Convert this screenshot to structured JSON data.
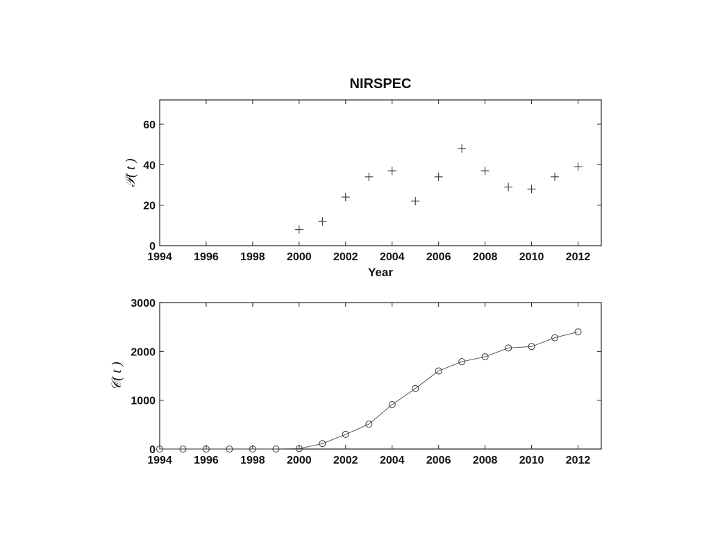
{
  "chart_data": [
    {
      "type": "scatter",
      "title": "NIRSPEC",
      "xlabel": "Year",
      "ylabel": "𝒫( t )",
      "xlim": [
        1994,
        2013
      ],
      "ylim": [
        0,
        72
      ],
      "xticks": [
        1994,
        1996,
        1998,
        2000,
        2002,
        2004,
        2006,
        2008,
        2010,
        2012
      ],
      "yticks": [
        0,
        20,
        40,
        60
      ],
      "marker": "plus",
      "x": [
        2000,
        2001,
        2002,
        2003,
        2004,
        2005,
        2006,
        2007,
        2008,
        2009,
        2010,
        2011,
        2012
      ],
      "y": [
        8,
        12,
        24,
        34,
        37,
        22,
        34,
        48,
        37,
        29,
        28,
        34,
        39
      ]
    },
    {
      "type": "line",
      "title": "",
      "xlabel": "",
      "ylabel": "𝒞( t )",
      "xlim": [
        1994,
        2013
      ],
      "ylim": [
        0,
        3000
      ],
      "xticks": [
        1994,
        1996,
        1998,
        2000,
        2002,
        2004,
        2006,
        2008,
        2010,
        2012
      ],
      "yticks": [
        0,
        1000,
        2000,
        3000
      ],
      "marker": "circle",
      "x": [
        1994,
        1995,
        1996,
        1997,
        1998,
        1999,
        2000,
        2001,
        2002,
        2003,
        2004,
        2005,
        2006,
        2007,
        2008,
        2009,
        2010,
        2011,
        2012
      ],
      "y": [
        0,
        0,
        0,
        0,
        0,
        0,
        8,
        110,
        300,
        510,
        910,
        1240,
        1600,
        1790,
        1890,
        2070,
        2100,
        2280,
        2400
      ]
    }
  ]
}
